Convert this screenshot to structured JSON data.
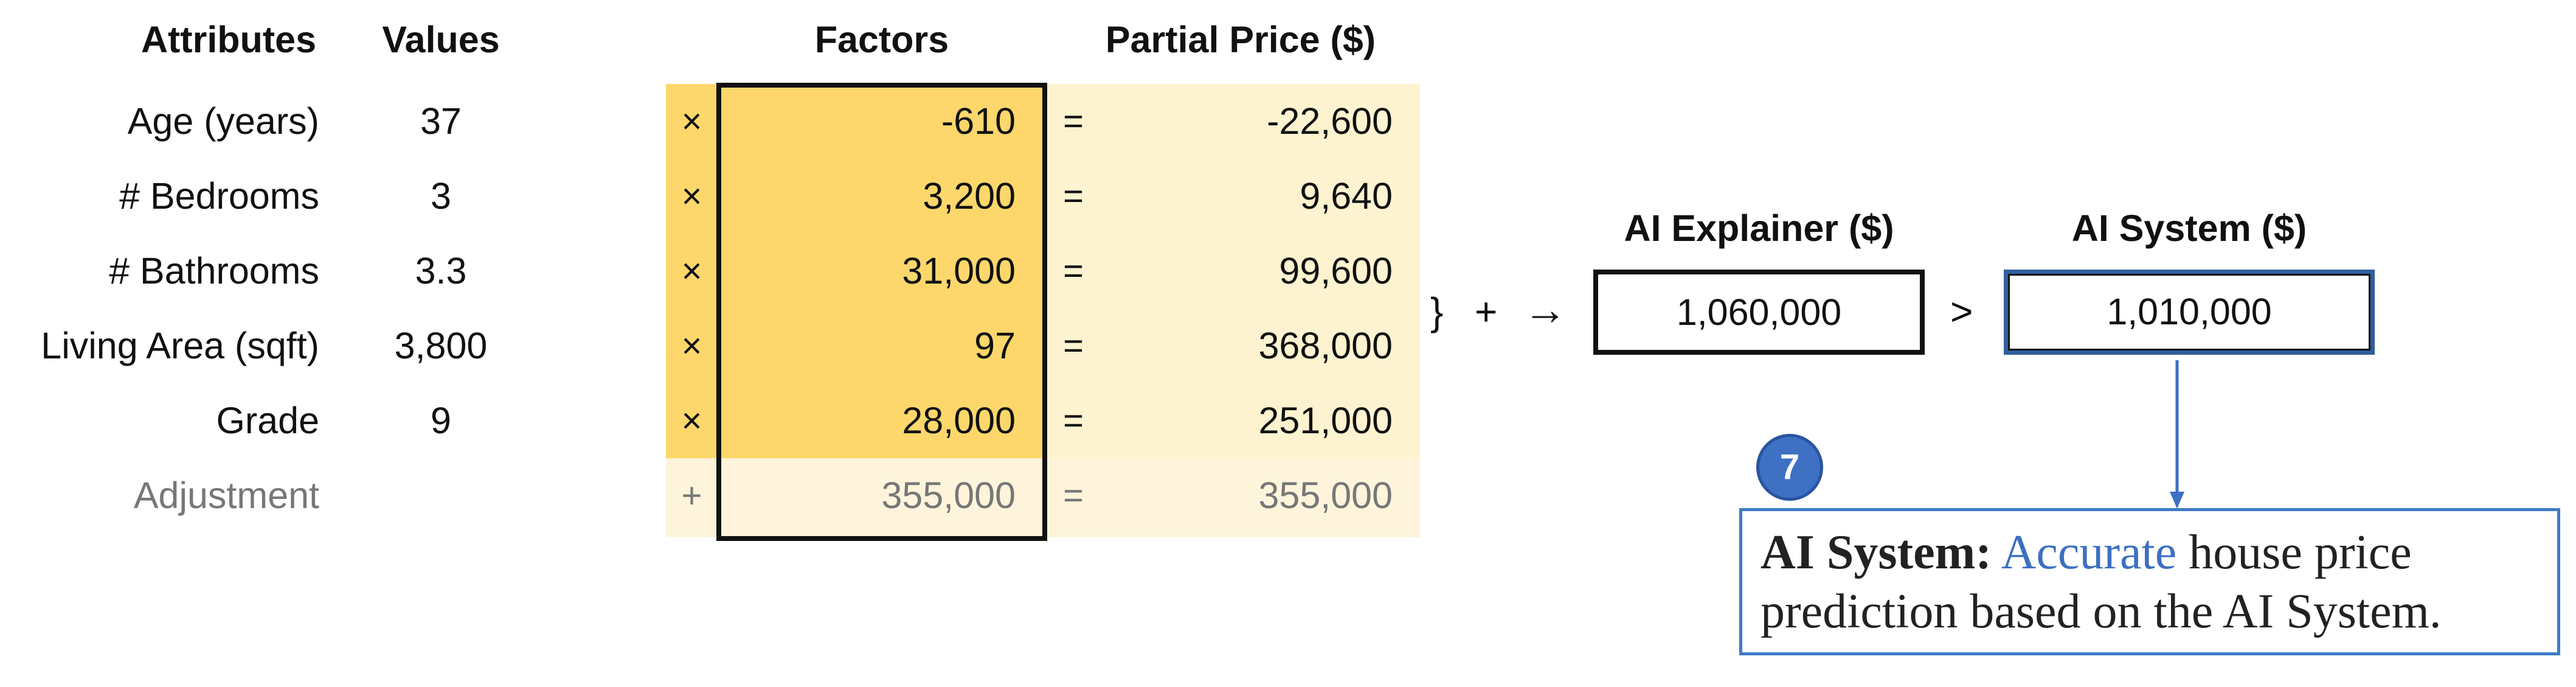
{
  "headers": {
    "attributes": "Attributes",
    "values": "Values",
    "factors": "Factors",
    "partial_price": "Partial Price ($)"
  },
  "rows": [
    {
      "attribute": "Age (years)",
      "value": "37",
      "op": "×",
      "factor": "-610",
      "eq": "=",
      "partial": "-22,600"
    },
    {
      "attribute": "# Bedrooms",
      "value": "3",
      "op": "×",
      "factor": "3,200",
      "eq": "=",
      "partial": "9,640"
    },
    {
      "attribute": "# Bathrooms",
      "value": "3.3",
      "op": "×",
      "factor": "31,000",
      "eq": "=",
      "partial": "99,600"
    },
    {
      "attribute": "Living Area (sqft)",
      "value": "3,800",
      "op": "×",
      "factor": "97",
      "eq": "=",
      "partial": "368,000"
    },
    {
      "attribute": "Grade",
      "value": "9",
      "op": "×",
      "factor": "28,000",
      "eq": "=",
      "partial": "251,000"
    }
  ],
  "adjustment": {
    "label": "Adjustment",
    "op": "+",
    "factor": "355,000",
    "eq": "=",
    "partial": "355,000"
  },
  "sum_symbols": {
    "brace": "}",
    "plus": "+",
    "arrow": "→",
    "compare": ">"
  },
  "explainer": {
    "title": "AI Explainer ($)",
    "value": "1,060,000"
  },
  "system": {
    "title": "AI System ($)",
    "value": "1,010,000"
  },
  "callout": {
    "badge": "7",
    "bold": "AI System:",
    "accent": "Accurate",
    "text": "house price prediction based on the AI System."
  },
  "colors": {
    "factor_fill": "#fdd76b",
    "partial_fill": "#fef3d0",
    "badge": "#3e70c4",
    "callout_border": "#3d7bc6"
  }
}
